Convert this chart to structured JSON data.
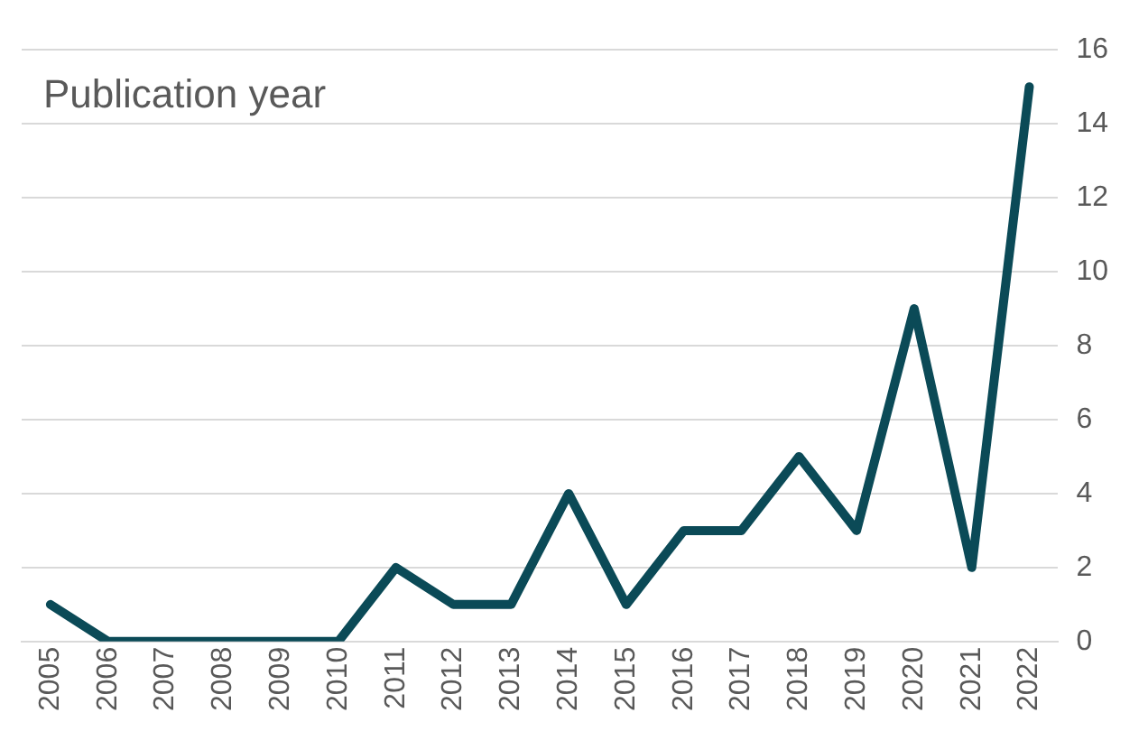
{
  "chart_data": {
    "type": "line",
    "title": "Publication year",
    "categories": [
      "2005",
      "2006",
      "2007",
      "2008",
      "2009",
      "2010",
      "2011",
      "2012",
      "2013",
      "2014",
      "2015",
      "2016",
      "2017",
      "2018",
      "2019",
      "2020",
      "2021",
      "2022"
    ],
    "series": [
      {
        "color": "#0b4a57",
        "values": [
          1,
          0,
          0,
          0,
          0,
          0,
          2,
          1,
          1,
          4,
          1,
          3,
          3,
          5,
          3,
          9,
          2,
          15
        ]
      }
    ],
    "ylim": [
      0,
      16
    ],
    "yticks": [
      0,
      2,
      4,
      6,
      8,
      10,
      12,
      14,
      16
    ],
    "grid": "y",
    "legend": false,
    "marker": "none",
    "line_style": "solid"
  }
}
